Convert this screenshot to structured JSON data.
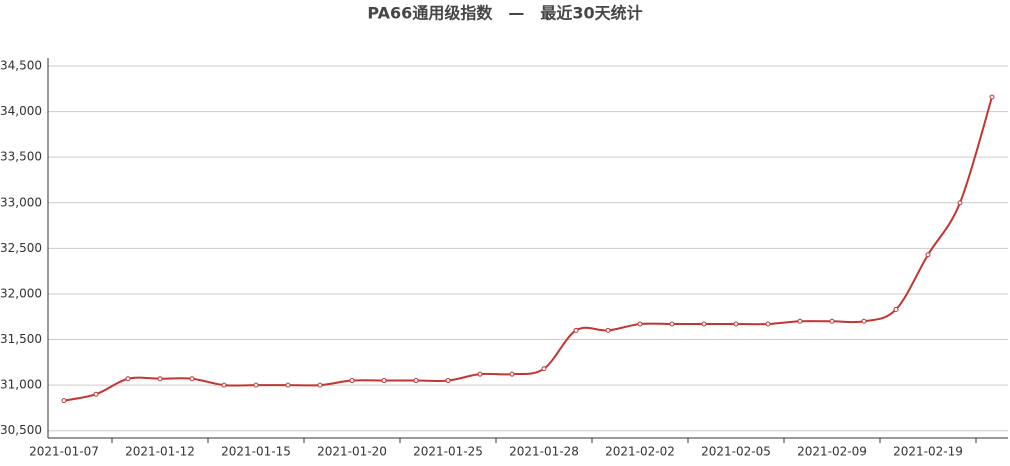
{
  "chart_data": {
    "type": "line",
    "title": "PA66通用级指数　—　最近30天统计",
    "categories": [
      "2021-01-07",
      null,
      null,
      "2021-01-12",
      null,
      null,
      "2021-01-15",
      null,
      null,
      "2021-01-20",
      null,
      null,
      "2021-01-25",
      null,
      null,
      "2021-01-28",
      null,
      null,
      "2021-02-02",
      null,
      null,
      "2021-02-05",
      null,
      null,
      "2021-02-09",
      null,
      null,
      "2021-02-19",
      null,
      null
    ],
    "series": [
      {
        "color": "#c23531",
        "values": [
          30830,
          30900,
          31070,
          31070,
          31070,
          31000,
          31000,
          31000,
          31000,
          31050,
          31050,
          31050,
          31050,
          31120,
          31120,
          31180,
          31600,
          31600,
          31670,
          31670,
          31670,
          31670,
          31670,
          31700,
          31700,
          31700,
          31830,
          32430,
          33000,
          34160
        ]
      }
    ],
    "ylim": [
      30420,
      34500
    ],
    "yticks": [
      {
        "value": 30500,
        "label": "30,500"
      },
      {
        "value": 31000,
        "label": "31,000"
      },
      {
        "value": 31500,
        "label": "31,500"
      },
      {
        "value": 32000,
        "label": "32,000"
      },
      {
        "value": 32500,
        "label": "32,500"
      },
      {
        "value": 33000,
        "label": "33,000"
      },
      {
        "value": 33500,
        "label": "33,500"
      },
      {
        "value": 34000,
        "label": "34,000"
      },
      {
        "value": 34500,
        "label": "34,500"
      }
    ],
    "grid": true,
    "smooth": true
  }
}
